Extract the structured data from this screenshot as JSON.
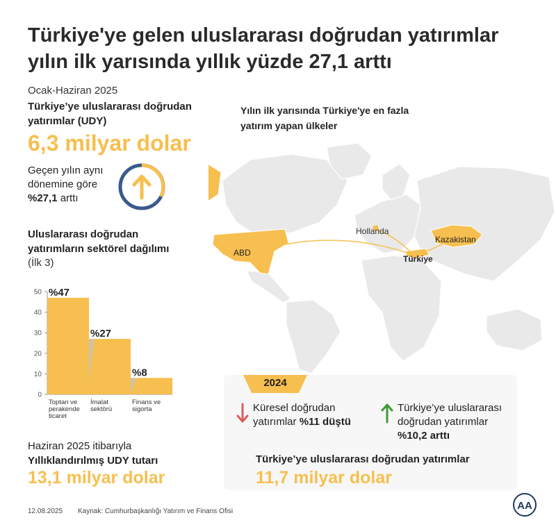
{
  "title_line1": "Türkiye'ye gelen uluslararası doğrudan yatırımlar",
  "title_line2": "yılın ilk yarısında yıllık yüzde 27,1 arttı",
  "period": "Ocak-Haziran 2025",
  "udy": {
    "label_line1": "Türkiye’ye uluslararası doğrudan",
    "label_line2": "yatırımlar (UDY)",
    "value": "6,3 milyar dolar",
    "change_line1": "Geçen yılın aynı",
    "change_line2": "dönemine göre",
    "change_pct": "%27,1",
    "change_word": " arttı"
  },
  "sector": {
    "title_line1": "Uluslararası doğrudan",
    "title_line2": "yatırımların sektörel dağılımı",
    "subtitle": "(İlk 3)"
  },
  "chart_data": {
    "type": "bar",
    "categories": [
      [
        "Toptan ve",
        "perakende",
        "ticaret"
      ],
      [
        "İmalat",
        "sektörü"
      ],
      [
        "Finans ve",
        "sigorta"
      ]
    ],
    "values": [
      47,
      27,
      8
    ],
    "data_labels": [
      "%47",
      "%27",
      "%8"
    ],
    "ylim": [
      0,
      50
    ],
    "yticks": [
      "0",
      "10",
      "20",
      "30",
      "40",
      "50"
    ],
    "bar_color": "#f7bf4f",
    "shadow_color": "#c9c3b6"
  },
  "annualized": {
    "label_line1": "Haziran 2025 itibarıyla",
    "label_line2": "Yıllıklandırılmış UDY tutarı",
    "value": "13,1 milyar dolar"
  },
  "map": {
    "title_line1": "Yılın ilk yarısında Türkiye'ye en fazla",
    "title_line2": "yatırım yapan ülkeler",
    "countries": [
      "ABD",
      "Hollanda",
      "Kazakistan"
    ],
    "destination": "Türkiye",
    "highlight_color": "#f7bf4f",
    "land_color": "#e9e9e9"
  },
  "box2024": {
    "year": "2024",
    "global_line1": "Küresel doğrudan",
    "global_line2": "yatırımlar ",
    "global_bold": "%11 düştü",
    "turkey_line1": "Türkiye’ye uluslararası",
    "turkey_line2": "doğrudan yatırımlar",
    "turkey_bold": "%10,2 arttı",
    "total_label": "Türkiye’ye uluslararası doğrudan yatırımlar",
    "total_value": "11,7 milyar dolar",
    "down_color": "#e05a5a",
    "up_color": "#3d9b35"
  },
  "footer": {
    "date": "12.08.2025",
    "source": "Kaynak: Cumhurbaşkanlığı Yatırım ve Finans Ofisi"
  },
  "logo_text": "AA"
}
